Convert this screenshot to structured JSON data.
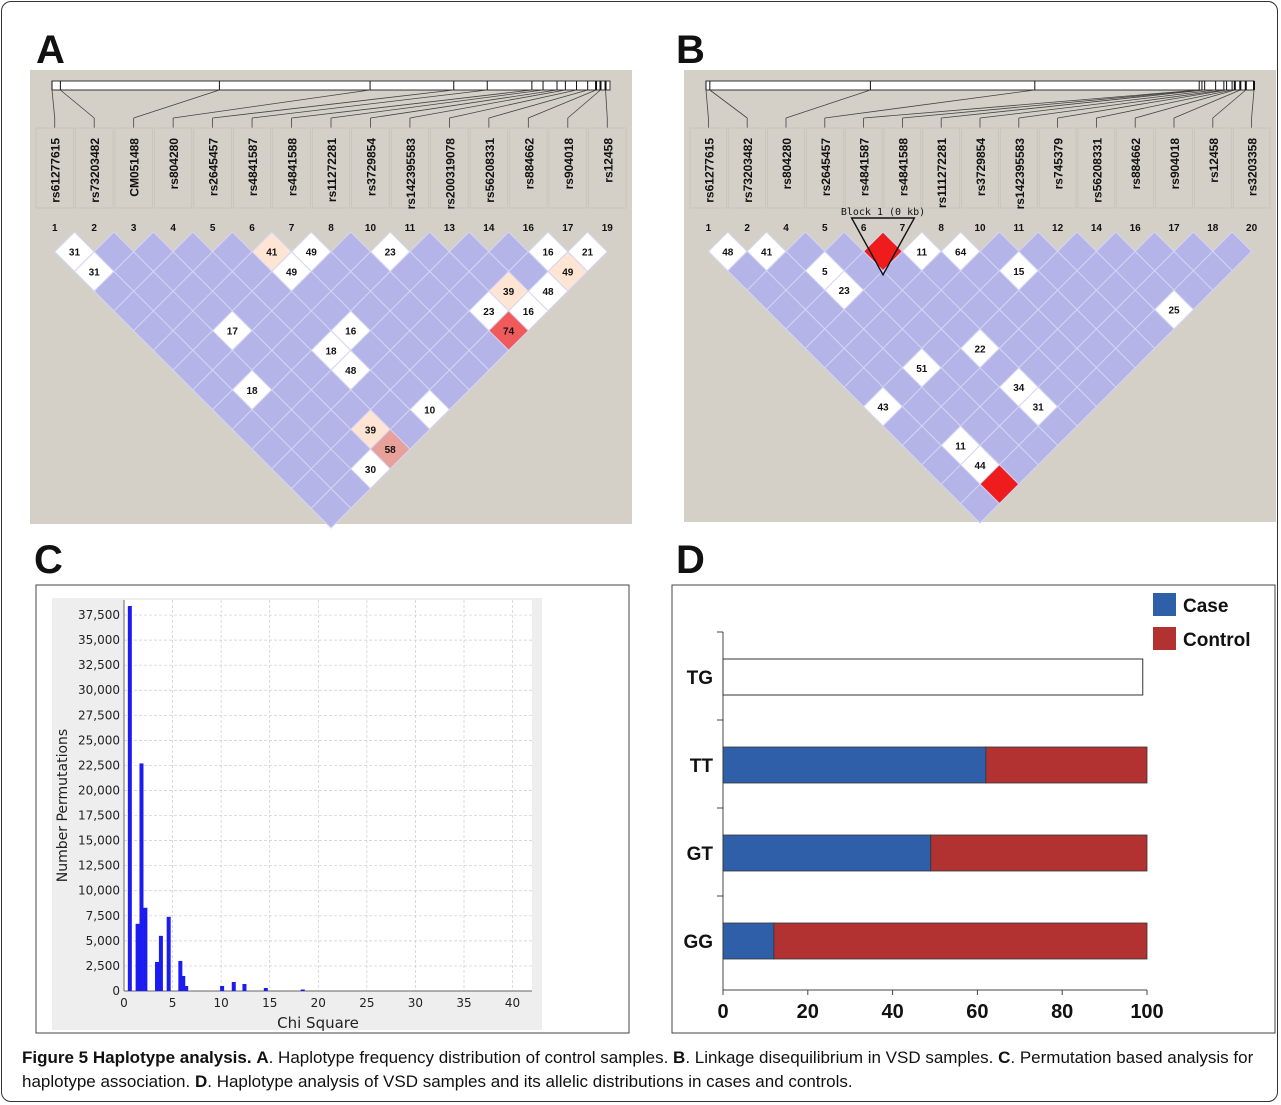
{
  "panels": {
    "a": "A",
    "b": "B",
    "c": "C",
    "d": "D"
  },
  "ld_a": {
    "snps": [
      "rs61277615",
      "rs73203482",
      "CM051488",
      "rs804280",
      "rs2645457",
      "rs4841587",
      "rs4841588",
      "rs11272281",
      "rs3729854",
      "rs142395583",
      "rs200319078",
      "rs56208331",
      "rs884662",
      "rs904018",
      "rs12458"
    ],
    "indices": [
      "1",
      "2",
      "3",
      "4",
      "5",
      "6",
      "7",
      "8",
      "10",
      "11",
      "13",
      "14",
      "16",
      "17",
      "19"
    ],
    "labels": [
      {
        "d": 1,
        "i": 0,
        "v": "31",
        "c": "#ffffff"
      },
      {
        "d": 2,
        "i": 0,
        "v": "31",
        "c": "#ffffff"
      },
      {
        "d": 1,
        "i": 5,
        "v": "41",
        "c": "#fde4d3"
      },
      {
        "d": 1,
        "i": 6,
        "v": "49",
        "c": "#ffffff"
      },
      {
        "d": 2,
        "i": 5,
        "v": "49",
        "c": "#ffffff"
      },
      {
        "d": 1,
        "i": 8,
        "v": "23",
        "c": "#ffffff"
      },
      {
        "d": 1,
        "i": 12,
        "v": "16",
        "c": "#ffffff"
      },
      {
        "d": 1,
        "i": 13,
        "v": "21",
        "c": "#ffffff"
      },
      {
        "d": 2,
        "i": 12,
        "v": "49",
        "c": "#fde4d3"
      },
      {
        "d": 3,
        "i": 10,
        "v": "39",
        "c": "#fde4d3"
      },
      {
        "d": 3,
        "i": 11,
        "v": "48",
        "c": "#ffffff"
      },
      {
        "d": 4,
        "i": 10,
        "v": "16",
        "c": "#ffffff"
      },
      {
        "d": 4,
        "i": 9,
        "v": "23",
        "c": "#ffffff"
      },
      {
        "d": 5,
        "i": 9,
        "v": "74",
        "c": "#f05a5a"
      },
      {
        "d": 5,
        "i": 10,
        "v": "49",
        "c": "#fde4d3"
      },
      {
        "d": 6,
        "i": 9,
        "v": "49",
        "c": "#fde4d3"
      },
      {
        "d": 5,
        "i": 5,
        "v": "16",
        "c": "#ffffff"
      },
      {
        "d": 5,
        "i": 2,
        "v": "17",
        "c": "#ffffff"
      },
      {
        "d": 6,
        "i": 4,
        "v": "18",
        "c": "#ffffff"
      },
      {
        "d": 7,
        "i": 4,
        "v": "48",
        "c": "#ffffff"
      },
      {
        "d": 9,
        "i": 5,
        "v": "10",
        "c": "#ffffff"
      },
      {
        "d": 8,
        "i": 1,
        "v": "18",
        "c": "#ffffff"
      },
      {
        "d": 10,
        "i": 3,
        "v": "39",
        "c": "#fde4d3"
      },
      {
        "d": 11,
        "i": 3,
        "v": "58",
        "c": "#e8a09a"
      },
      {
        "d": 12,
        "i": 2,
        "v": "30",
        "c": "#ffffff"
      },
      {
        "d": 13,
        "i": 2,
        "v": "16",
        "c": "#ffffff"
      }
    ]
  },
  "ld_b": {
    "snps": [
      "rs61277615",
      "rs73203482",
      "rs804280",
      "rs2645457",
      "rs4841587",
      "rs4841588",
      "rs111272281",
      "rs3729854",
      "rs142395583",
      "rs745379",
      "rs56208331",
      "rs884662",
      "rs904018",
      "rs12458",
      "rs3203358"
    ],
    "indices": [
      "1",
      "2",
      "4",
      "5",
      "6",
      "7",
      "8",
      "10",
      "11",
      "12",
      "14",
      "16",
      "17",
      "18",
      "20"
    ],
    "block": "Block 1 (0 kb)",
    "labels": [
      {
        "d": 1,
        "i": 0,
        "v": "48",
        "c": "#ffffff"
      },
      {
        "d": 1,
        "i": 1,
        "v": "41",
        "c": "#ffffff"
      },
      {
        "d": 1,
        "i": 4,
        "v": "",
        "c": "#ee1c1c"
      },
      {
        "d": 1,
        "i": 5,
        "v": "11",
        "c": "#ffffff"
      },
      {
        "d": 1,
        "i": 6,
        "v": "64",
        "c": "#ffffff"
      },
      {
        "d": 2,
        "i": 2,
        "v": "5",
        "c": "#ffffff"
      },
      {
        "d": 3,
        "i": 2,
        "v": "23",
        "c": "#ffffff"
      },
      {
        "d": 2,
        "i": 7,
        "v": "15",
        "c": "#ffffff"
      },
      {
        "d": 4,
        "i": 10,
        "v": "25",
        "c": "#ffffff"
      },
      {
        "d": 6,
        "i": 4,
        "v": "22",
        "c": "#ffffff"
      },
      {
        "d": 7,
        "i": 2,
        "v": "51",
        "c": "#ffffff"
      },
      {
        "d": 9,
        "i": 0,
        "v": "43",
        "c": "#ffffff"
      },
      {
        "d": 8,
        "i": 4,
        "v": "34",
        "c": "#ffffff"
      },
      {
        "d": 9,
        "i": 4,
        "v": "31",
        "c": "#ffffff"
      },
      {
        "d": 11,
        "i": 1,
        "v": "11",
        "c": "#ffffff"
      },
      {
        "d": 12,
        "i": 1,
        "v": "44",
        "c": "#ffffff"
      },
      {
        "d": 13,
        "i": 1,
        "v": "",
        "c": "#ee1c1c"
      }
    ]
  },
  "chart_data": [
    {
      "type": "bar",
      "title": "",
      "xlabel": "Chi Square",
      "ylabel": "Number Permutations",
      "xlim": [
        0,
        42
      ],
      "ylim": [
        0,
        39000
      ],
      "xticks": [
        "0",
        "5",
        "10",
        "15",
        "20",
        "25",
        "30",
        "35",
        "40"
      ],
      "yticks": [
        "0",
        "2,500",
        "5,000",
        "7,500",
        "10,000",
        "12,500",
        "15,000",
        "17,500",
        "20,000",
        "22,500",
        "25,000",
        "27,500",
        "30,000",
        "32,500",
        "35,000",
        "37,500"
      ],
      "grid": true,
      "x": [
        0.6,
        1.4,
        1.8,
        2.2,
        3.4,
        3.8,
        4.6,
        5.8,
        6.1,
        6.4,
        10.1,
        11.3,
        12.4,
        14.6,
        18.4
      ],
      "values": [
        38400,
        6700,
        22700,
        8300,
        2900,
        5500,
        7400,
        3000,
        1500,
        500,
        500,
        900,
        700,
        300,
        150
      ]
    },
    {
      "type": "bar",
      "orientation": "horizontal",
      "stacked": true,
      "categories": [
        "TG",
        "TT",
        "GT",
        "GG"
      ],
      "series": [
        {
          "name": "Case",
          "values": [
            0,
            62,
            49,
            12
          ],
          "color": "#2f5fa8"
        },
        {
          "name": "Control",
          "values": [
            0,
            38,
            51,
            88
          ],
          "color": "#b23232"
        }
      ],
      "outline_values": [
        99,
        0,
        0,
        0
      ],
      "xticks": [
        "0",
        "20",
        "40",
        "60",
        "80",
        "100"
      ],
      "xlim": [
        0,
        100
      ],
      "legend": "top-right"
    }
  ],
  "caption": {
    "head": "Figure 5 Haplotype analysis.",
    "a": "A",
    "a_text": ". Haplotype frequency distribution of control samples.",
    "b": "B",
    "b_text": ". Linkage disequilibrium in VSD samples.",
    "c": "C",
    "c_text": ". Permutation based analysis for haplotype association.",
    "d": "D",
    "d_text": ". Haplotype analysis of VSD samples and its allelic distributions in cases and controls."
  }
}
